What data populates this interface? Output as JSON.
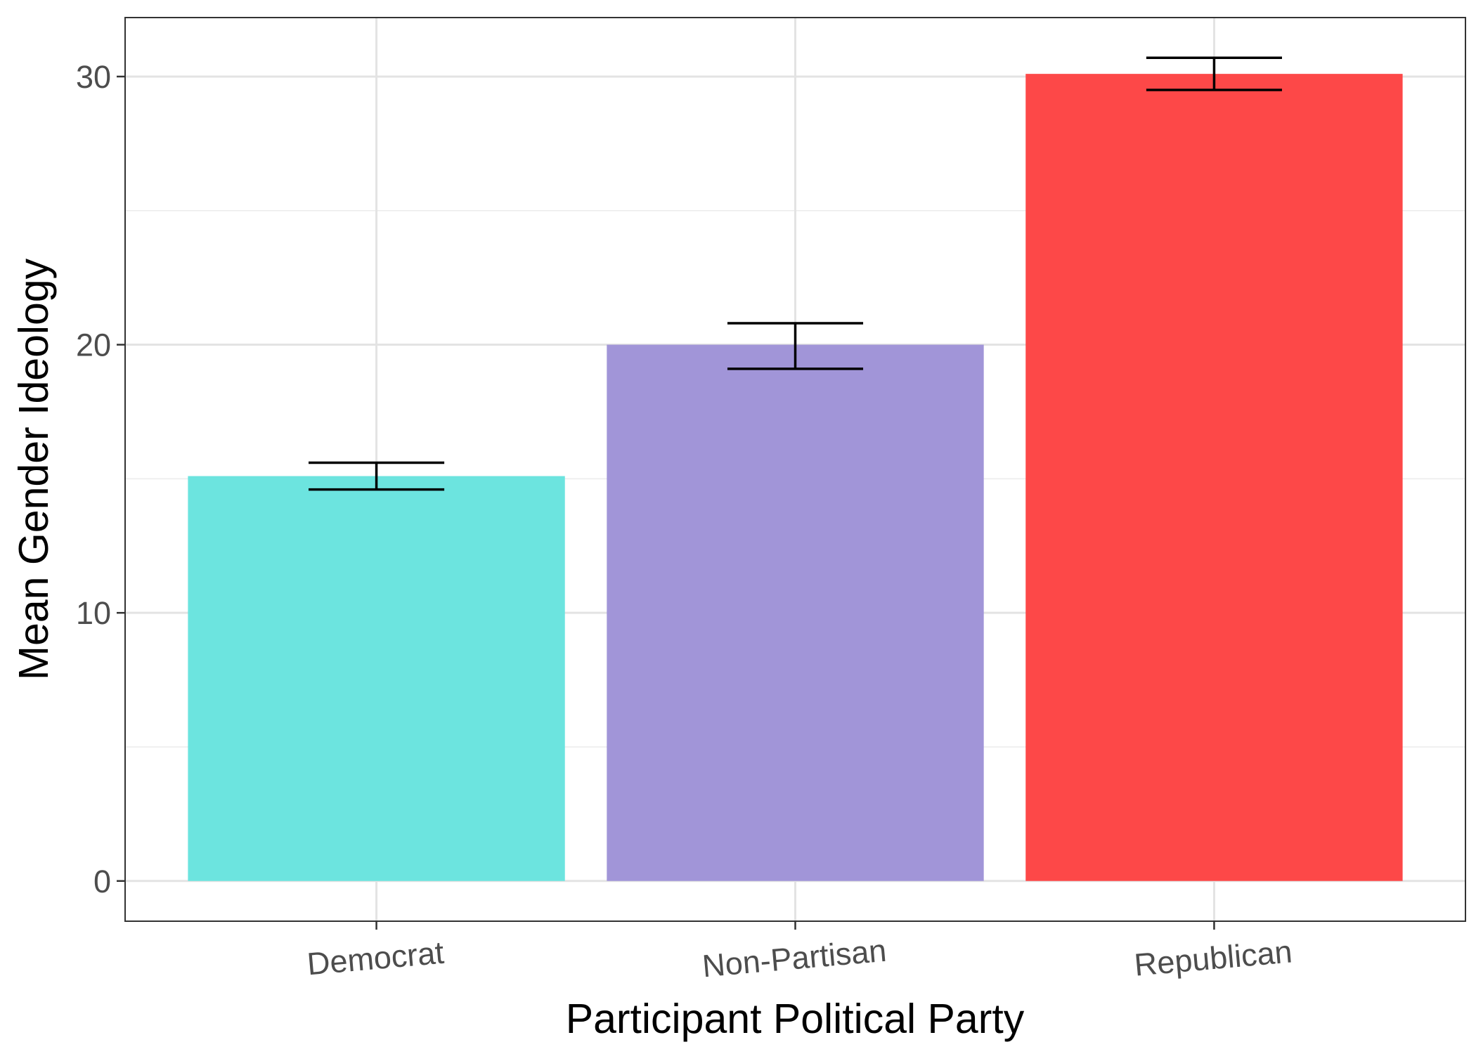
{
  "chart_data": {
    "type": "bar",
    "title": "",
    "xlabel": "Participant Political Party",
    "ylabel": "Mean Gender Ideology",
    "categories": [
      "Democrat",
      "Non-Partisan",
      "Republican"
    ],
    "values": [
      15.1,
      20.0,
      30.1
    ],
    "error_bars": [
      {
        "low": 14.6,
        "high": 15.6
      },
      {
        "low": 19.1,
        "high": 20.8
      },
      {
        "low": 29.5,
        "high": 30.7
      }
    ],
    "colors": [
      "#6ce4df",
      "#a195d8",
      "#fd4848"
    ],
    "ylim": [
      -1.5,
      32.2
    ],
    "yticks": [
      0,
      10,
      20,
      30
    ],
    "yticks_minor": [
      5,
      15,
      25
    ],
    "grid": true,
    "legend": "none",
    "x_tick_rotation_deg": -5
  }
}
